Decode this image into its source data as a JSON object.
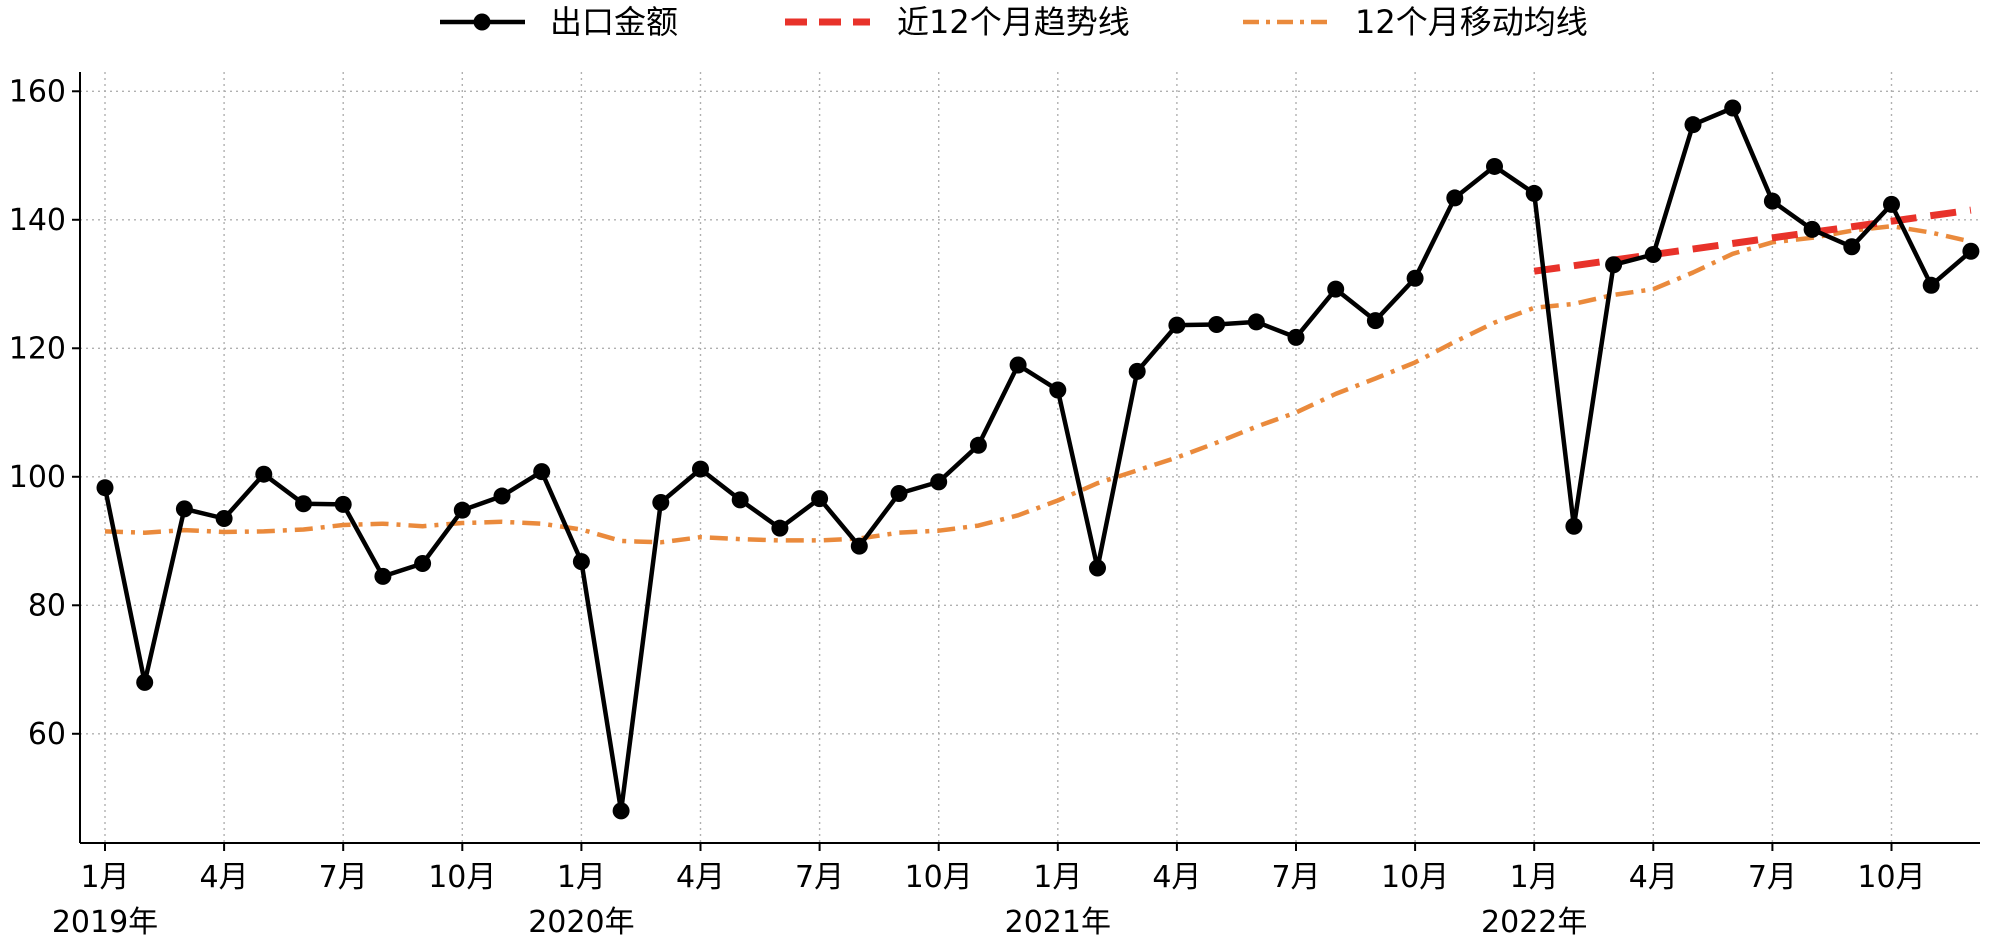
{
  "chart_data": {
    "type": "line",
    "title": "",
    "xlabel": "",
    "ylabel": "",
    "x_tick_labels": [
      "1月",
      "4月",
      "7月",
      "10月",
      "1月",
      "4月",
      "7月",
      "10月",
      "1月",
      "4月",
      "7月",
      "10月",
      "1月",
      "4月",
      "7月",
      "10月"
    ],
    "year_labels": [
      "2019年",
      "2020年",
      "2021年",
      "2022年"
    ],
    "x": [
      "2019-01",
      "2019-02",
      "2019-03",
      "2019-04",
      "2019-05",
      "2019-06",
      "2019-07",
      "2019-08",
      "2019-09",
      "2019-10",
      "2019-11",
      "2019-12",
      "2020-01",
      "2020-02",
      "2020-03",
      "2020-04",
      "2020-05",
      "2020-06",
      "2020-07",
      "2020-08",
      "2020-09",
      "2020-10",
      "2020-11",
      "2020-12",
      "2021-01",
      "2021-02",
      "2021-03",
      "2021-04",
      "2021-05",
      "2021-06",
      "2021-07",
      "2021-08",
      "2021-09",
      "2021-10",
      "2021-11",
      "2021-12",
      "2022-01",
      "2022-02",
      "2022-03",
      "2022-04",
      "2022-05",
      "2022-06",
      "2022-07",
      "2022-08",
      "2022-09",
      "2022-10",
      "2022-11",
      "2022-12"
    ],
    "ylim": [
      43,
      163
    ],
    "y_ticks": [
      60,
      80,
      100,
      120,
      140,
      160
    ],
    "grid": true,
    "legend_position": "top",
    "series": [
      {
        "name": "出口金额",
        "style": "solid-marker",
        "color": "#000000",
        "values": [
          98.3,
          68,
          95,
          93.5,
          100.4,
          95.8,
          95.7,
          84.5,
          86.5,
          94.8,
          97,
          100.8,
          86.8,
          48,
          96,
          101.2,
          96.4,
          92,
          96.6,
          89.2,
          97.4,
          99.2,
          104.9,
          117.4,
          113.5,
          85.8,
          116.4,
          123.6,
          123.7,
          124.1,
          121.7,
          129.2,
          124.3,
          130.9,
          143.4,
          148.3,
          144.1,
          92.3,
          133,
          134.6,
          154.8,
          157.4,
          142.9,
          138.5,
          135.8,
          142.4,
          129.8,
          135.1
        ]
      },
      {
        "name": "近12个月趋势线",
        "style": "dashed",
        "color": "#e8322a",
        "x": [
          "2022-01",
          "2022-12"
        ],
        "values": [
          132,
          141.5
        ]
      },
      {
        "name": "12个月移动均线",
        "style": "dash-dot",
        "color": "#ea8a3c",
        "values": [
          91.5,
          91.3,
          91.7,
          91.4,
          91.5,
          91.8,
          92.5,
          92.7,
          92.3,
          92.8,
          93.0,
          92.7,
          91.8,
          90.0,
          89.8,
          90.6,
          90.3,
          90.1,
          90.1,
          90.4,
          91.3,
          91.6,
          92.4,
          94.0,
          96.3,
          99.0,
          101.0,
          103.0,
          105.3,
          107.8,
          110.0,
          112.9,
          115.3,
          117.8,
          121.0,
          124.0,
          126.3,
          126.9,
          128.3,
          129.2,
          131.8,
          134.7,
          136.5,
          137.2,
          138.3,
          139.0,
          138.0,
          136.6
        ]
      }
    ]
  }
}
